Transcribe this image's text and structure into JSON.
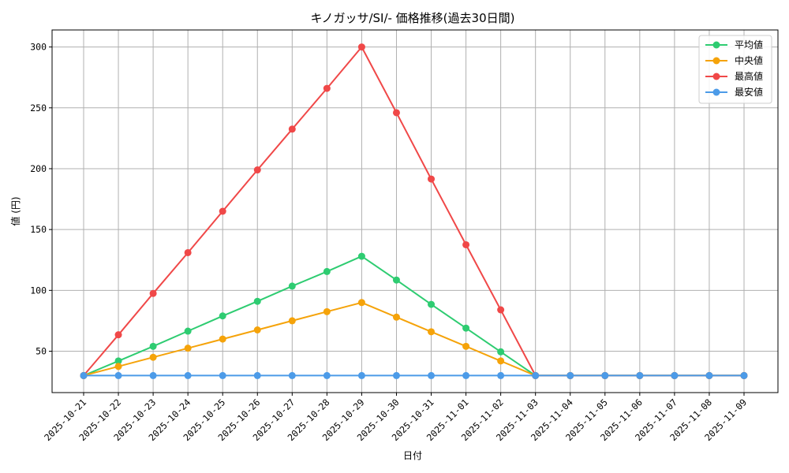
{
  "chart_data": {
    "type": "line",
    "title": "キノガッサ/SI/- 価格推移(過去30日間)",
    "xlabel": "日付",
    "ylabel": "値 (円)",
    "categories": [
      "2025-10-21",
      "2025-10-22",
      "2025-10-23",
      "2025-10-24",
      "2025-10-25",
      "2025-10-26",
      "2025-10-27",
      "2025-10-28",
      "2025-10-29",
      "2025-10-30",
      "2025-10-31",
      "2025-11-01",
      "2025-11-02",
      "2025-11-03",
      "2025-11-04",
      "2025-11-05",
      "2025-11-06",
      "2025-11-07",
      "2025-11-08",
      "2025-11-09"
    ],
    "ylim": [
      16,
      314
    ],
    "yticks": [
      50,
      100,
      150,
      200,
      250,
      300
    ],
    "grid": true,
    "legend_position": "top-right",
    "series": [
      {
        "name": "平均値",
        "color": "#2ecc71",
        "values": [
          30,
          42,
          54,
          66.5,
          79,
          91,
          103.5,
          115.5,
          128,
          108.5,
          88.5,
          69,
          49.5,
          30,
          30,
          30,
          30,
          30,
          30,
          30
        ]
      },
      {
        "name": "中央値",
        "color": "#f5a30a",
        "values": [
          30,
          37.5,
          45,
          52.5,
          60,
          67.5,
          75,
          82.5,
          90,
          78,
          66,
          54,
          42,
          30,
          30,
          30,
          30,
          30,
          30,
          30
        ]
      },
      {
        "name": "最高値",
        "color": "#f04848",
        "values": [
          30,
          63.5,
          97.5,
          131,
          165,
          199,
          232.5,
          266,
          300,
          246,
          191.5,
          137.5,
          84,
          30,
          30,
          30,
          30,
          30,
          30,
          30
        ]
      },
      {
        "name": "最安値",
        "color": "#4c9be8",
        "values": [
          30,
          30,
          30,
          30,
          30,
          30,
          30,
          30,
          30,
          30,
          30,
          30,
          30,
          30,
          30,
          30,
          30,
          30,
          30,
          30
        ]
      }
    ]
  }
}
